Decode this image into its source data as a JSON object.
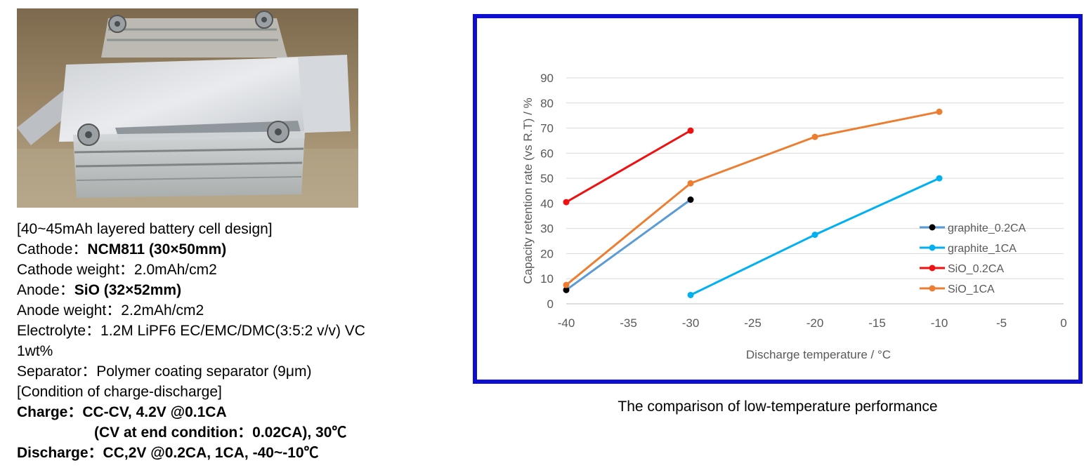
{
  "spec": {
    "title": "[40~45mAh  layered battery cell design]",
    "cathode_label": "Cathode：",
    "cathode_value": "NCM811 (30×50mm)",
    "cathode_weight": "Cathode weight：2.0mAh/cm2",
    "anode_label": "Anode：",
    "anode_value": "SiO (32×52mm)",
    "anode_weight": "Anode weight：2.2mAh/cm2",
    "electrolyte_1": "Electrolyte：1.2M LiPF6 EC/EMC/DMC(3:5:2 v/v) VC",
    "electrolyte_2": "1wt%",
    "separator": "Separator：Polymer coating separator (9μm)",
    "condition_title": "[Condition of charge-discharge]",
    "charge_1": "Charge：CC-CV, 4.2V @0.1CA",
    "charge_2": "(CV at end condition：0.02CA), 30℃",
    "discharge": "Discharge：CC,2V @0.2CA, 1CA, -40~-10℃"
  },
  "caption": "The comparison of low-temperature performance",
  "colors": {
    "frame": "#0e0ed0",
    "graphite_0.2CA": "#5b9bd5",
    "graphite_0.2CA_marker": "#000000",
    "graphite_1CA": "#00b0f0",
    "SiO_0.2CA": "#ee1111",
    "SiO_1CA": "#ed7d31"
  },
  "chart_data": {
    "type": "line",
    "title": "",
    "xlabel": "Discharge temperature / °C",
    "ylabel": "Capacity retention rate (vs R.T) / %",
    "xlim": [
      -40,
      0
    ],
    "ylim": [
      0,
      90
    ],
    "xticks": [
      -40,
      -35,
      -30,
      -25,
      -20,
      -15,
      -10,
      -5,
      0
    ],
    "yticks": [
      0,
      10,
      20,
      30,
      40,
      50,
      60,
      70,
      80,
      90
    ],
    "grid": "horizontal",
    "legend_position": "right",
    "series": [
      {
        "name": "graphite_0.2CA",
        "x": [
          -40,
          -30
        ],
        "y": [
          5.5,
          41.5
        ]
      },
      {
        "name": "graphite_1CA",
        "x": [
          -30,
          -20,
          -10
        ],
        "y": [
          3.5,
          27.5,
          50
        ]
      },
      {
        "name": "SiO_0.2CA",
        "x": [
          -40,
          -30
        ],
        "y": [
          40.5,
          69
        ]
      },
      {
        "name": "SiO_1CA",
        "x": [
          -40,
          -30,
          -20,
          -10
        ],
        "y": [
          7.5,
          48,
          66.5,
          76.5
        ]
      }
    ]
  }
}
